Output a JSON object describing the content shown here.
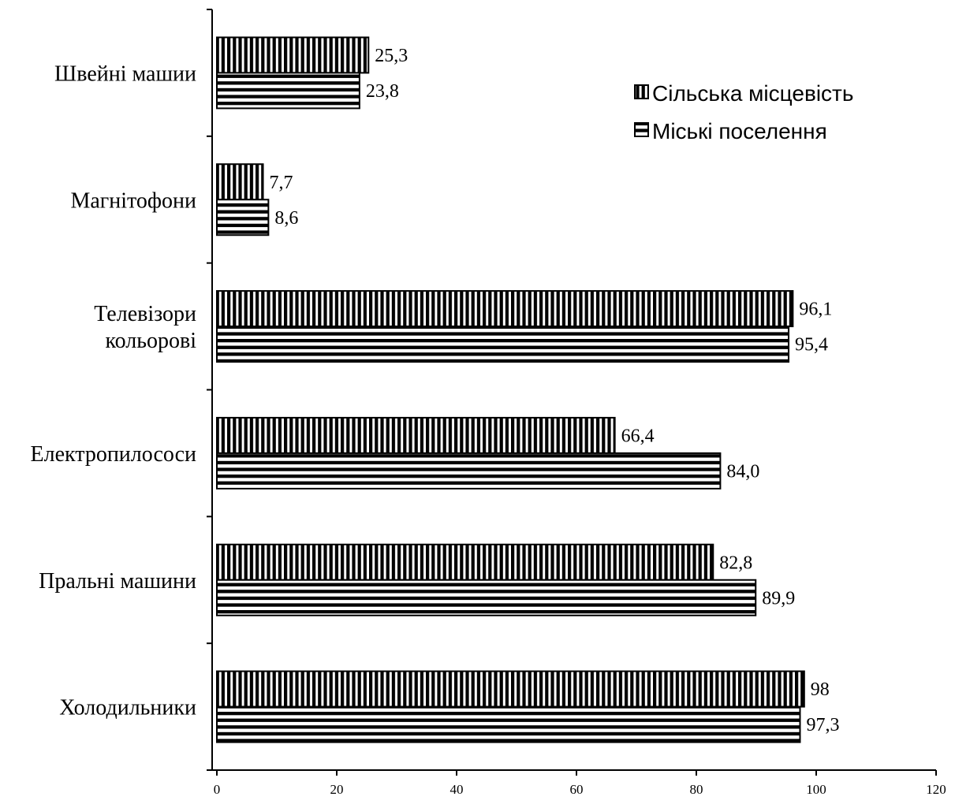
{
  "chart_data": {
    "type": "bar",
    "orientation": "horizontal",
    "categories": [
      "Холодильники",
      "Пральні машини",
      "Електропилососи",
      "Телевізори кольорові",
      "Магнітофони",
      "Швейні машии"
    ],
    "category_lines": [
      [
        "Холодильники"
      ],
      [
        "Пральні машини"
      ],
      [
        "Електропилососи"
      ],
      [
        "Телевізори",
        "кольорові "
      ],
      [
        "Магнітофони"
      ],
      [
        "Швейні машии"
      ]
    ],
    "series": [
      {
        "name": "Сільська місцевість",
        "values": [
          98,
          82.8,
          66.4,
          96.1,
          7.7,
          25.3
        ],
        "value_labels": [
          "98",
          "82,8",
          "66,4",
          "96,1",
          "7,7",
          "25,3"
        ],
        "pattern": "vertical-stripes"
      },
      {
        "name": "Міські поселення",
        "values": [
          97.3,
          89.9,
          84.0,
          95.4,
          8.6,
          23.8
        ],
        "value_labels": [
          "97,3",
          "89,9",
          "84,0",
          "95,4",
          "8,6",
          "23,8"
        ],
        "pattern": "horizontal-stripes"
      }
    ],
    "xlim": [
      0,
      120
    ],
    "xticks": [
      0,
      20,
      40,
      60,
      80,
      100,
      120
    ],
    "title": "",
    "xlabel": "",
    "ylabel": "",
    "grid": false,
    "legend_position": "top-right",
    "colors": {
      "stroke": "#000000",
      "background": "#ffffff"
    }
  }
}
